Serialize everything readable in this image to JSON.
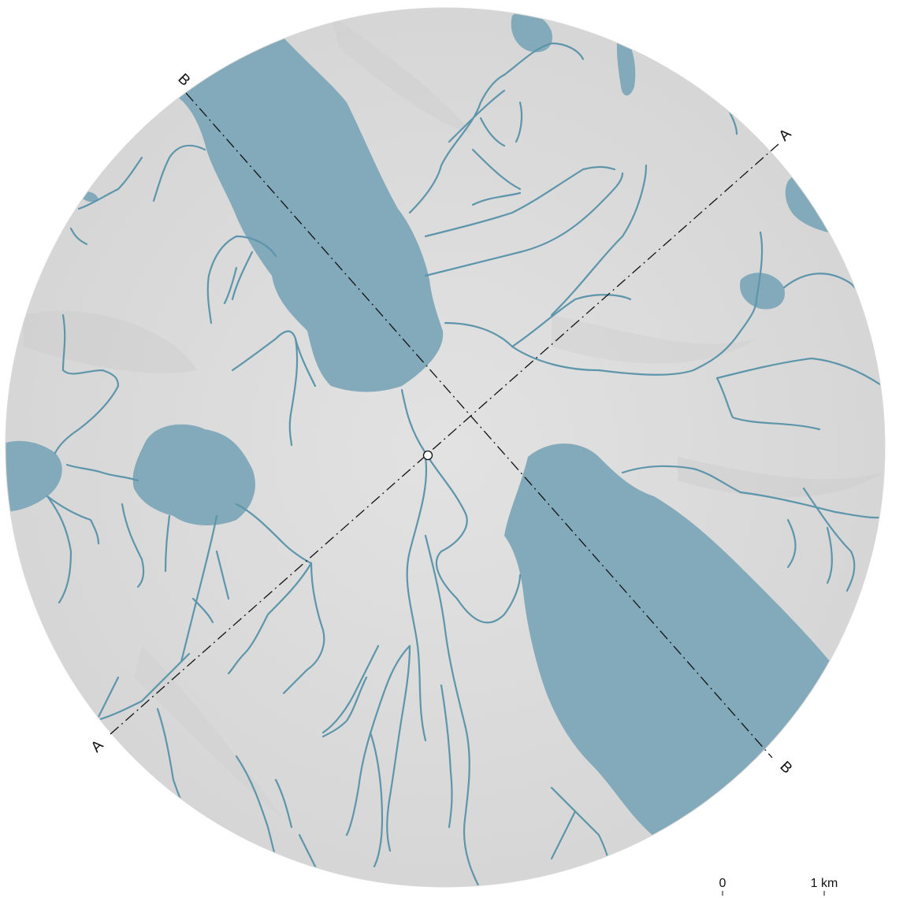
{
  "map": {
    "colors": {
      "background": "#ffffff",
      "terrain": "#dedede",
      "terrain_shade": "#cfcfcf",
      "water": "#82aabb",
      "river": "#5d95ab",
      "section_line": "#111111",
      "center_marker_fill": "#ffffff"
    },
    "sections": [
      {
        "id": "A",
        "start_label": "A",
        "end_label": "A"
      },
      {
        "id": "B",
        "start_label": "B",
        "end_label": "B"
      }
    ],
    "scale_bar": {
      "start_label": "0",
      "end_label": "1 km"
    }
  }
}
